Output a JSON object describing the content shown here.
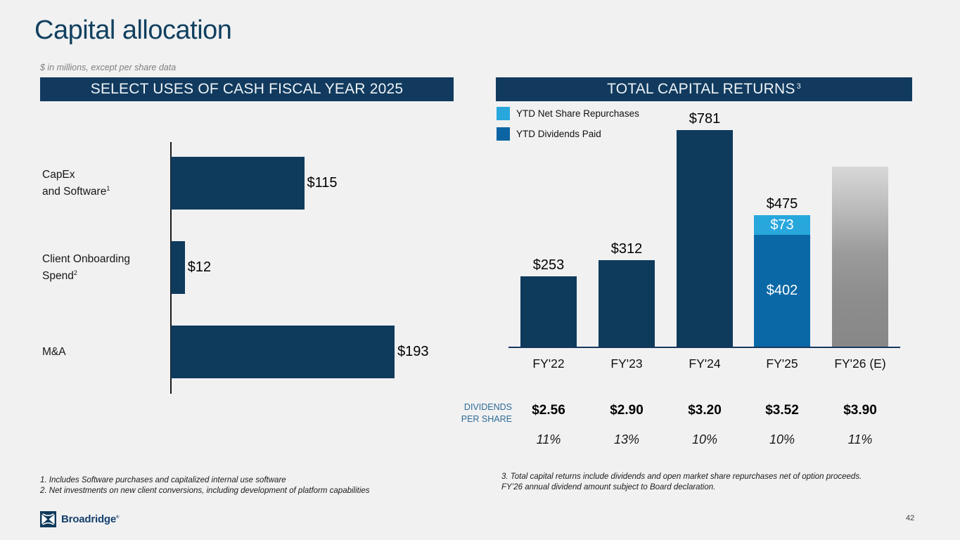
{
  "slide": {
    "title": "Capital allocation",
    "subtitle": "$ in millions, except per share data",
    "page_number": "42",
    "logo_text": "Broadridge",
    "logo_trademark": "®"
  },
  "left_panel": {
    "header": "SELECT USES OF CASH FISCAL YEAR 2025",
    "footnotes": [
      "1. Includes Software purchases and capitalized internal use software",
      "2. Net investments on new client conversions, including development of platform capabilities"
    ]
  },
  "right_panel": {
    "header": "TOTAL CAPITAL RETURNS",
    "header_superscript": "3",
    "legend": [
      {
        "label": "YTD Net Share Repurchases",
        "color": "#28a7dd"
      },
      {
        "label": "YTD Dividends Paid",
        "color": "#0c64a2"
      }
    ],
    "footnote": "3. Total capital returns include dividends and open market share repurchases net of option proceeds. FY’26 annual dividend amount subject to Board declaration."
  },
  "colors": {
    "navy": "#0e3a5c",
    "medium_blue": "#0b68a6",
    "light_blue": "#28a7dd",
    "title_navy": "#11405f",
    "background": "#f1f1f2"
  },
  "chart_data": [
    {
      "type": "bar",
      "orientation": "horizontal",
      "title": "SELECT USES OF CASH FISCAL YEAR 2025",
      "units": "$ millions",
      "xlim": [
        0,
        200
      ],
      "grid": false,
      "bar_color": "#0e3a5c",
      "rows": [
        {
          "label_lines": [
            {
              "text": "CapEx"
            },
            {
              "text": "and Software",
              "sup": "1"
            }
          ],
          "value": 115,
          "value_label": "$115"
        },
        {
          "label_lines": [
            {
              "text": "Client Onboarding"
            },
            {
              "text": "Spend",
              "sup": "2"
            }
          ],
          "value": 12,
          "value_label": "$12"
        },
        {
          "label_lines": [
            {
              "text": "M&A"
            }
          ],
          "value": 193,
          "value_label": "$193"
        }
      ]
    },
    {
      "type": "bar",
      "subtype": "stacked-vertical",
      "title": "TOTAL CAPITAL RETURNS",
      "units": "$ millions",
      "ylim": [
        0,
        850
      ],
      "grid": false,
      "categories": [
        "FY'22",
        "FY'23",
        "FY'24",
        "FY'25",
        "FY'26 (E)"
      ],
      "bars": [
        {
          "category": "FY'22",
          "total": 253,
          "total_label": "$253",
          "segments": [
            {
              "series": "Total capital returns",
              "value": 253,
              "color": "#0e3a5c"
            }
          ]
        },
        {
          "category": "FY'23",
          "total": 312,
          "total_label": "$312",
          "segments": [
            {
              "series": "Total capital returns",
              "value": 312,
              "color": "#0e3a5c"
            }
          ]
        },
        {
          "category": "FY'24",
          "total": 781,
          "total_label": "$781",
          "segments": [
            {
              "series": "Total capital returns",
              "value": 781,
              "color": "#0e3a5c"
            }
          ]
        },
        {
          "category": "FY'25",
          "total": 475,
          "total_label": "$475",
          "segments": [
            {
              "series": "YTD Dividends Paid",
              "value": 402,
              "label": "$402",
              "color": "#0b68a6"
            },
            {
              "series": "YTD Net Share Repurchases",
              "value": 73,
              "label": "$73",
              "color": "#28a7dd"
            }
          ]
        },
        {
          "category": "FY'26 (E)",
          "estimated": true,
          "display_value": 650,
          "gradient_gray": true,
          "segments": []
        }
      ],
      "dividends_per_share": {
        "label_lines": [
          "DIVIDENDS",
          "PER SHARE"
        ],
        "values": [
          "$2.56",
          "$2.90",
          "$3.20",
          "$3.52",
          "$3.90"
        ],
        "yoy_growth": [
          "11%",
          "13%",
          "10%",
          "10%",
          "11%"
        ]
      }
    }
  ]
}
